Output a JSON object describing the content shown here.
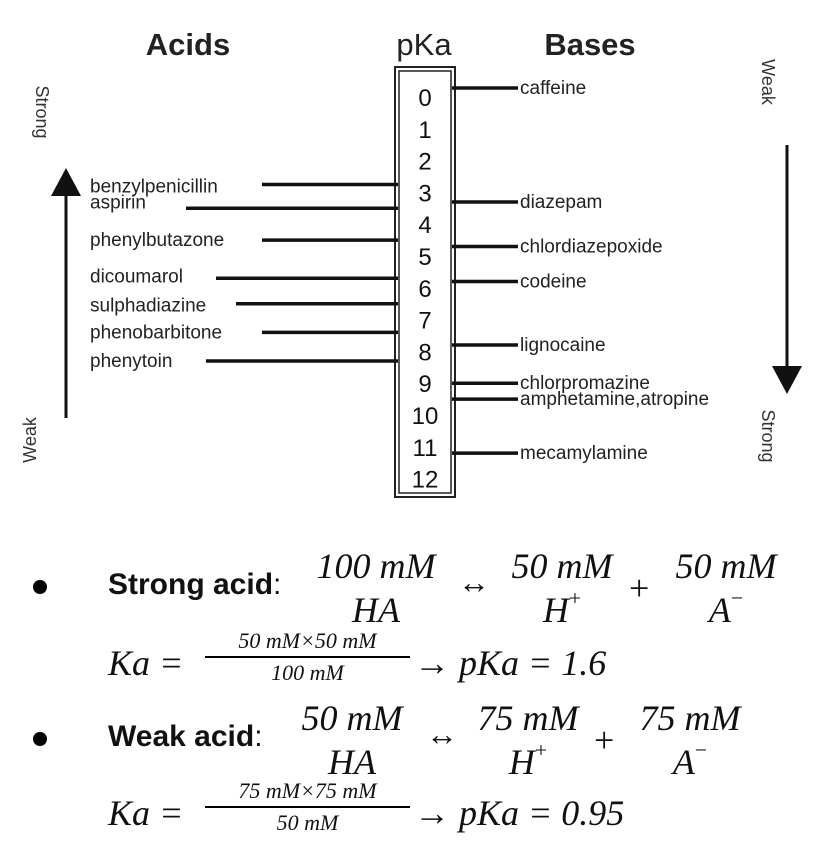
{
  "diagram": {
    "acids_header": "Acids",
    "pka_header": "pKa",
    "bases_header": "Bases",
    "pka_scale": [
      "0",
      "1",
      "2",
      "3",
      "4",
      "5",
      "6",
      "7",
      "8",
      "9",
      "10",
      "11",
      "12"
    ],
    "left_top_label": "Strong",
    "left_bottom_label": "Weak",
    "right_top_label": "Weak",
    "right_bottom_label": "Strong",
    "acids": [
      {
        "name": "benzylpenicillin",
        "pka": 2.75
      },
      {
        "name": "aspirin",
        "pka": 3.5
      },
      {
        "name": "phenylbutazone",
        "pka": 4.5
      },
      {
        "name": "dicoumarol",
        "pka": 5.7
      },
      {
        "name": "sulphadiazine",
        "pka": 6.5
      },
      {
        "name": "phenobarbitone",
        "pka": 7.4
      },
      {
        "name": "phenytoin",
        "pka": 8.3
      }
    ],
    "bases": [
      {
        "name": "caffeine",
        "pka": 0.0
      },
      {
        "name": "diazepam",
        "pka": 3.3
      },
      {
        "name": "chlordiazepoxide",
        "pka": 4.7
      },
      {
        "name": "codeine",
        "pka": 5.8
      },
      {
        "name": "lignocaine",
        "pka": 7.8
      },
      {
        "name": "chlorpromazine",
        "pka": 9.0
      },
      {
        "name": "amphetamine,atropine",
        "pka": 9.5
      },
      {
        "name": "mecamylamine",
        "pka": 11.2
      }
    ]
  },
  "equations": {
    "strong": {
      "label": "Strong acid",
      "colon": ":",
      "num1": "100 mM",
      "den1": "HA",
      "arrow": "↔",
      "num2": "50 mM",
      "den2": "H",
      "plus": "+",
      "num3": "50 mM",
      "den3": "A",
      "ka_lhs": "Ka =",
      "ka_num": "50 mM×50 mM",
      "ka_den": "100 mM",
      "ka_rhs": "→ pKa = 1.6"
    },
    "weak": {
      "label": "Weak acid",
      "colon": ":",
      "num1": "50 mM",
      "den1": "HA",
      "arrow": "↔",
      "num2": "75 mM",
      "den2": "H",
      "plus": "+",
      "num3": "75 mM",
      "den3": "A",
      "ka_lhs": "Ka =",
      "ka_num": "75 mM×75 mM",
      "ka_den": "50 mM",
      "ka_rhs": "→ pKa = 0.95"
    },
    "sup_plus": "+",
    "sup_minus": "−"
  }
}
